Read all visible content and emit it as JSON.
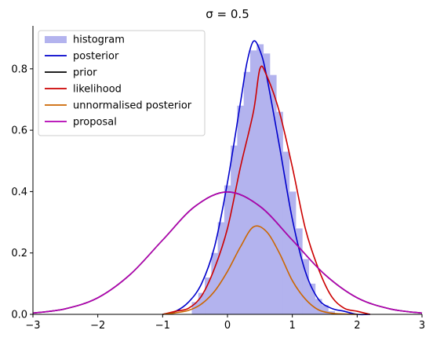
{
  "chart_data": {
    "type": "line",
    "title": "σ = 0.5",
    "xlabel": "",
    "ylabel": "",
    "xlim": [
      -3,
      3
    ],
    "ylim": [
      0,
      0.94
    ],
    "xticks": [
      -3,
      -2,
      -1,
      0,
      1,
      2,
      3
    ],
    "yticks": [
      0.0,
      0.2,
      0.4,
      0.6,
      0.8
    ],
    "xtick_labels": [
      "−3",
      "−2",
      "−1",
      "0",
      "1",
      "2",
      "3"
    ],
    "ytick_labels": [
      "0.0",
      "0.2",
      "0.4",
      "0.6",
      "0.8"
    ],
    "grid": false,
    "legend_position": "top-left",
    "histogram": {
      "name": "histogram",
      "color": "#b3b3ee",
      "x": [
        -0.5,
        -0.4,
        -0.3,
        -0.2,
        -0.1,
        0.0,
        0.1,
        0.2,
        0.3,
        0.4,
        0.5,
        0.6,
        0.7,
        0.8,
        0.9,
        1.0,
        1.1,
        1.2,
        1.3,
        1.4,
        1.5,
        1.6
      ],
      "values": [
        0.04,
        0.07,
        0.12,
        0.2,
        0.3,
        0.42,
        0.55,
        0.68,
        0.79,
        0.86,
        0.88,
        0.85,
        0.78,
        0.66,
        0.53,
        0.4,
        0.28,
        0.18,
        0.1,
        0.05,
        0.03,
        0.01
      ]
    },
    "series": [
      {
        "name": "posterior",
        "color": "#0000cc",
        "x": [
          -1.0,
          -0.8,
          -0.6,
          -0.4,
          -0.2,
          0.0,
          0.2,
          0.3,
          0.4,
          0.5,
          0.6,
          0.8,
          1.0,
          1.2,
          1.4,
          1.6,
          1.8,
          2.0,
          2.2
        ],
        "values": [
          0.0,
          0.01,
          0.04,
          0.1,
          0.22,
          0.43,
          0.69,
          0.82,
          0.89,
          0.86,
          0.78,
          0.55,
          0.31,
          0.14,
          0.05,
          0.02,
          0.01,
          0.0,
          0.0
        ]
      },
      {
        "name": "prior",
        "color": "#000000",
        "x": [
          -3.0,
          -2.5,
          -2.0,
          -1.5,
          -1.0,
          -0.5,
          0.0,
          0.5,
          1.0,
          1.5,
          2.0,
          2.5,
          3.0
        ],
        "values": [
          0.004,
          0.018,
          0.054,
          0.13,
          0.242,
          0.352,
          0.399,
          0.352,
          0.242,
          0.13,
          0.054,
          0.018,
          0.004
        ]
      },
      {
        "name": "likelihood",
        "color": "#cc0000",
        "x": [
          -1.0,
          -0.8,
          -0.6,
          -0.4,
          -0.2,
          0.0,
          0.2,
          0.4,
          0.5,
          0.6,
          0.8,
          1.0,
          1.2,
          1.4,
          1.6,
          1.8,
          2.0,
          2.2
        ],
        "values": [
          0.0,
          0.01,
          0.02,
          0.06,
          0.15,
          0.28,
          0.48,
          0.66,
          0.8,
          0.78,
          0.66,
          0.48,
          0.28,
          0.15,
          0.06,
          0.02,
          0.01,
          0.0
        ]
      },
      {
        "name": "unnormalised posterior",
        "color": "#cc6600",
        "x": [
          -1.0,
          -0.8,
          -0.6,
          -0.4,
          -0.2,
          0.0,
          0.2,
          0.4,
          0.6,
          0.8,
          1.0,
          1.2,
          1.4,
          1.6,
          1.8,
          2.0
        ],
        "values": [
          0.0,
          0.005,
          0.013,
          0.034,
          0.075,
          0.14,
          0.22,
          0.285,
          0.27,
          0.2,
          0.11,
          0.05,
          0.015,
          0.004,
          0.001,
          0.0
        ]
      },
      {
        "name": "proposal",
        "color": "#b300b3",
        "x": [
          -3.0,
          -2.5,
          -2.0,
          -1.5,
          -1.0,
          -0.5,
          0.0,
          0.5,
          1.0,
          1.5,
          2.0,
          2.5,
          3.0
        ],
        "values": [
          0.004,
          0.018,
          0.054,
          0.13,
          0.242,
          0.352,
          0.399,
          0.352,
          0.242,
          0.13,
          0.054,
          0.018,
          0.004
        ]
      }
    ]
  }
}
